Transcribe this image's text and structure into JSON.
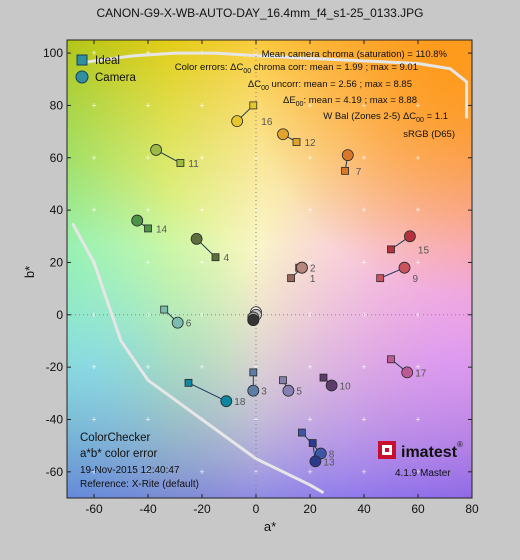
{
  "title": "CANON-G9-X-WB-AUTO-DAY_16.4mm_f4_s1-25_0133.JPG",
  "chart_data": {
    "type": "scatter",
    "title": "CANON-G9-X-WB-AUTO-DAY_16.4mm_f4_s1-25_0133.JPG",
    "xlabel": "a*",
    "ylabel": "b*",
    "xlim": [
      -70,
      80
    ],
    "ylim": [
      -70,
      105
    ],
    "xticks": [
      "-60",
      "-40",
      "-20",
      "0",
      "20",
      "40",
      "60",
      "80"
    ],
    "yticks": [
      "100",
      "80",
      "60",
      "40",
      "20",
      "0",
      "-20",
      "-40",
      "-60"
    ],
    "xtick_values": [
      -60,
      -40,
      -20,
      0,
      20,
      40,
      60,
      80
    ],
    "ytick_values": [
      100,
      80,
      60,
      40,
      20,
      0,
      -20,
      -40,
      -60
    ],
    "grid": true,
    "legend": {
      "position": "top-left",
      "entries": [
        {
          "name": "Ideal",
          "marker": "square"
        },
        {
          "name": "Camera",
          "marker": "circle"
        }
      ]
    },
    "patches": [
      {
        "id": "1",
        "ideal": [
          13,
          14
        ],
        "camera": [
          17,
          18
        ],
        "color": "#9a655c"
      },
      {
        "id": "2",
        "ideal": [
          16,
          18
        ],
        "camera": [
          17,
          18
        ],
        "color": "#b8867c"
      },
      {
        "id": "3",
        "ideal": [
          -1,
          -22
        ],
        "camera": [
          -1,
          -29
        ],
        "color": "#5d7da4"
      },
      {
        "id": "4",
        "ideal": [
          -15,
          22
        ],
        "camera": [
          -22,
          29
        ],
        "color": "#5e6f3e"
      },
      {
        "id": "5",
        "ideal": [
          10,
          -25
        ],
        "camera": [
          12,
          -29
        ],
        "color": "#8680b2"
      },
      {
        "id": "6",
        "ideal": [
          -34,
          2
        ],
        "camera": [
          -29,
          -3
        ],
        "color": "#7cbcb0"
      },
      {
        "id": "7",
        "ideal": [
          33,
          55
        ],
        "camera": [
          34,
          61
        ],
        "color": "#d9772a"
      },
      {
        "id": "8",
        "ideal": [
          17,
          -45
        ],
        "camera": [
          24,
          -53
        ],
        "color": "#3d57a6"
      },
      {
        "id": "9",
        "ideal": [
          46,
          14
        ],
        "camera": [
          55,
          18
        ],
        "color": "#c9535f"
      },
      {
        "id": "10",
        "ideal": [
          25,
          -24
        ],
        "camera": [
          28,
          -27
        ],
        "color": "#5d3c6b"
      },
      {
        "id": "11",
        "ideal": [
          -28,
          58
        ],
        "camera": [
          -37,
          63
        ],
        "color": "#9cbb44"
      },
      {
        "id": "12",
        "ideal": [
          15,
          66
        ],
        "camera": [
          10,
          69
        ],
        "color": "#e0a32e"
      },
      {
        "id": "13",
        "ideal": [
          21,
          -49
        ],
        "camera": [
          22,
          -56
        ],
        "color": "#2b3a8f"
      },
      {
        "id": "14",
        "ideal": [
          -40,
          33
        ],
        "camera": [
          -44,
          36
        ],
        "color": "#4b9448"
      },
      {
        "id": "15",
        "ideal": [
          50,
          25
        ],
        "camera": [
          57,
          30
        ],
        "color": "#b5313c"
      },
      {
        "id": "16",
        "ideal": [
          -1,
          80
        ],
        "camera": [
          -7,
          74
        ],
        "color": "#e8c72e"
      },
      {
        "id": "17",
        "ideal": [
          50,
          -17
        ],
        "camera": [
          56,
          -22
        ],
        "color": "#bd5a96"
      },
      {
        "id": "18",
        "ideal": [
          -25,
          -26
        ],
        "camera": [
          -11,
          -33
        ],
        "color": "#0e85a1"
      },
      {
        "id": "",
        "ideal": [
          -1,
          -1
        ],
        "camera": [
          0,
          1
        ],
        "color": "#f2f2f2"
      },
      {
        "id": "",
        "ideal": [
          -1,
          -2
        ],
        "camera": [
          0,
          0
        ],
        "color": "#c8c8c8"
      },
      {
        "id": "",
        "ideal": [
          -1,
          -2
        ],
        "camera": [
          -1,
          -1
        ],
        "color": "#a0a0a0"
      },
      {
        "id": "",
        "ideal": [
          -1,
          -2
        ],
        "camera": [
          -1,
          -2
        ],
        "color": "#7a7a7a"
      },
      {
        "id": "",
        "ideal": [
          -1,
          -2
        ],
        "camera": [
          -1,
          -2
        ],
        "color": "#555555"
      },
      {
        "id": "",
        "ideal": [
          -1,
          -2
        ],
        "camera": [
          -1,
          -2
        ],
        "color": "#343434"
      }
    ],
    "gamut_boundary": {
      "name": "sRGB (D65)",
      "points": [
        [
          -66,
          96
        ],
        [
          -60,
          97
        ],
        [
          -45,
          99
        ],
        [
          -30,
          100
        ],
        [
          -15,
          100
        ],
        [
          0,
          99
        ],
        [
          20,
          98
        ],
        [
          40,
          97
        ],
        [
          60,
          96
        ],
        [
          72,
          94
        ],
        [
          78,
          89
        ],
        [
          78,
          75
        ],
        [
          -68,
          35
        ],
        [
          -60,
          20
        ],
        [
          -50,
          -10
        ],
        [
          -40,
          -25
        ],
        [
          -20,
          -40
        ],
        [
          0,
          -55
        ],
        [
          10,
          -60
        ],
        [
          20,
          -65
        ],
        [
          25,
          -68
        ]
      ]
    }
  },
  "annotations": {
    "line1": "Mean camera chroma (saturation) = 110.8%",
    "line2": "Color errors:  ΔC",
    "line2_sub": "00",
    "line2_rest": " chroma corr: mean = 1.99 ; max = 9.01",
    "line3": "ΔC",
    "line3_sub": "00",
    "line3_rest": " uncorr: mean = 2.56 ; max = 8.85",
    "line4": "ΔE",
    "line4_sub": "00",
    "line4_rest": ": mean = 4.19 ; max = 8.88",
    "line5": "W Bal (Zones 2-5)  ΔC",
    "line5_sub": "00",
    "line5_rest": " = 1.1",
    "line6": "sRGB (D65)"
  },
  "bottom_left": {
    "line1": "ColorChecker",
    "line2": "a*b* color error",
    "line3": "19-Nov-2015 12:40:47",
    "line4": "Reference: X-Rite (default)"
  },
  "brand": {
    "name": "imatest",
    "registered": "®",
    "version": "4.1.9 Master",
    "accent": "#c8102e"
  }
}
